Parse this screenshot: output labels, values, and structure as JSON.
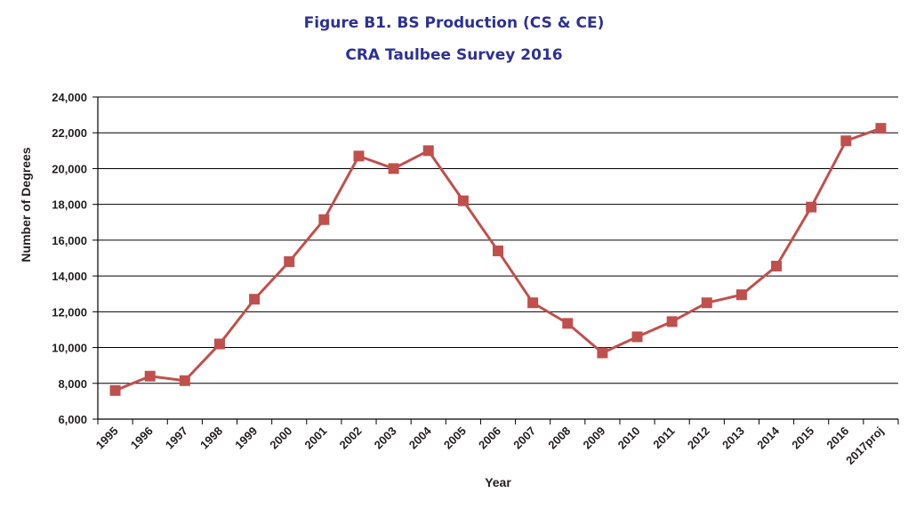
{
  "chart_data": {
    "type": "line",
    "title": "Figure B1. BS Production (CS & CE)",
    "subtitle": "CRA Taulbee Survey 2016",
    "xlabel": "Year",
    "ylabel": "Number of Degrees",
    "categories": [
      "1995",
      "1996",
      "1997",
      "1998",
      "1999",
      "2000",
      "2001",
      "2002",
      "2003",
      "2004",
      "2005",
      "2006",
      "2007",
      "2008",
      "2009",
      "2010",
      "2011",
      "2012",
      "2013",
      "2014",
      "2015",
      "2016",
      "2017proj"
    ],
    "series": [
      {
        "values": [
          7600,
          8400,
          8150,
          10200,
          12700,
          14800,
          17150,
          20700,
          20000,
          21000,
          18200,
          15400,
          12500,
          11350,
          9700,
          10600,
          11450,
          12500,
          12950,
          14550,
          17850,
          21550,
          22250
        ],
        "color": "#c0504d"
      }
    ],
    "ylim": [
      6000,
      24000
    ],
    "yticks": [
      6000,
      8000,
      10000,
      12000,
      14000,
      16000,
      18000,
      20000,
      22000,
      24000
    ],
    "ytick_labels": [
      "6,000",
      "8,000",
      "10,000",
      "12,000",
      "14,000",
      "16,000",
      "18,000",
      "20,000",
      "22,000",
      "24,000"
    ],
    "grid": true,
    "legend": "none"
  }
}
